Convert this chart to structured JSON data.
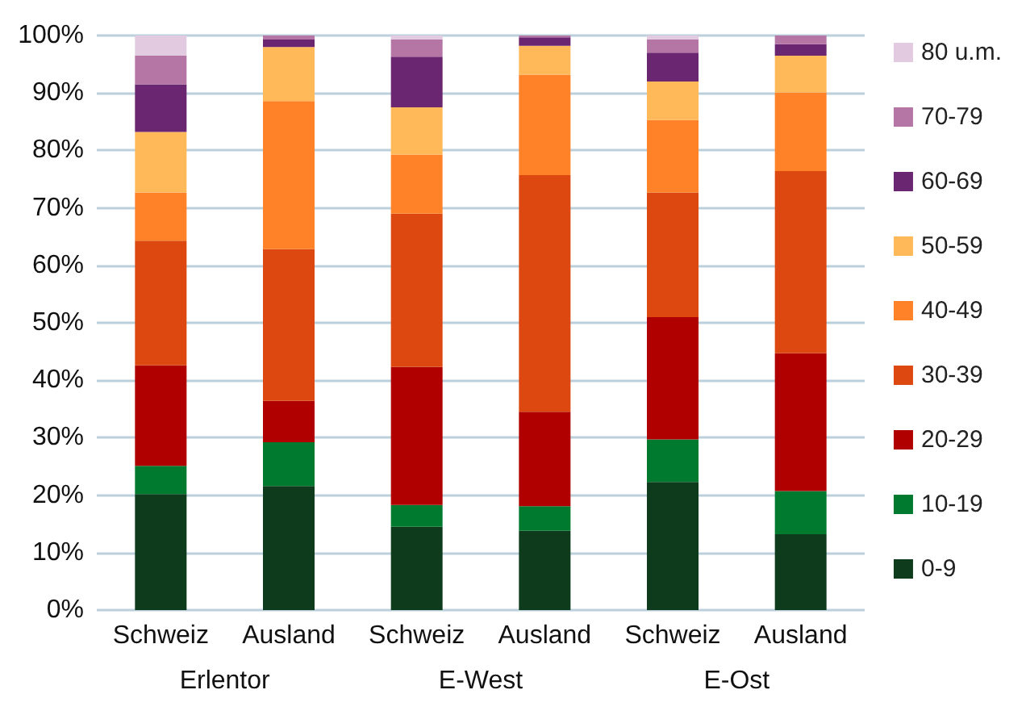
{
  "chart_data": {
    "type": "bar",
    "stacked": true,
    "grid": "y",
    "legend": "right",
    "categories": [
      "Schweiz",
      "Ausland",
      "Schweiz",
      "Ausland",
      "Schweiz",
      "Ausland"
    ],
    "annotations": [
      "Erlentor",
      "E-West",
      "E-Ost"
    ],
    "ylim": [
      0,
      100
    ],
    "yticks": [
      {
        "value": 0,
        "label": "0%"
      },
      {
        "value": 10,
        "label": "10%"
      },
      {
        "value": 20,
        "label": "20%"
      },
      {
        "value": 30,
        "label": "30%"
      },
      {
        "value": 40,
        "label": "40%"
      },
      {
        "value": 50,
        "label": "50%"
      },
      {
        "value": 60,
        "label": "60%"
      },
      {
        "value": 70,
        "label": "70%"
      },
      {
        "value": 80,
        "label": "80%"
      },
      {
        "value": 90,
        "label": "90%"
      },
      {
        "value": 100,
        "label": "100%"
      }
    ],
    "series": [
      {
        "name": "0-9",
        "color": "#0d3b1b",
        "values": [
          20.2,
          21.6,
          14.5,
          13.8,
          22.3,
          13.2
        ]
      },
      {
        "name": "10-19",
        "color": "#007a2f",
        "values": [
          4.9,
          7.6,
          3.8,
          4.3,
          7.4,
          7.5
        ]
      },
      {
        "name": "20-29",
        "color": "#b00000",
        "values": [
          17.5,
          7.2,
          24.0,
          16.4,
          21.3,
          24.0
        ]
      },
      {
        "name": "30-39",
        "color": "#dc4810",
        "values": [
          21.7,
          26.4,
          26.7,
          41.2,
          21.7,
          31.7
        ]
      },
      {
        "name": "40-49",
        "color": "#ff8228",
        "values": [
          8.4,
          25.8,
          10.3,
          17.5,
          12.6,
          13.7
        ]
      },
      {
        "name": "50-59",
        "color": "#ffb958",
        "values": [
          10.5,
          9.4,
          8.2,
          5.0,
          6.7,
          6.4
        ]
      },
      {
        "name": "60-69",
        "color": "#6a2671",
        "values": [
          8.3,
          1.3,
          8.8,
          1.5,
          5.0,
          2.0
        ]
      },
      {
        "name": "70-79",
        "color": "#b576a6",
        "values": [
          5.0,
          0.7,
          3.0,
          0.3,
          2.3,
          1.5
        ]
      },
      {
        "name": "80 u.m.",
        "color": "#e2cbe0",
        "values": [
          3.5,
          0,
          0.7,
          0,
          0.7,
          0
        ]
      }
    ]
  }
}
